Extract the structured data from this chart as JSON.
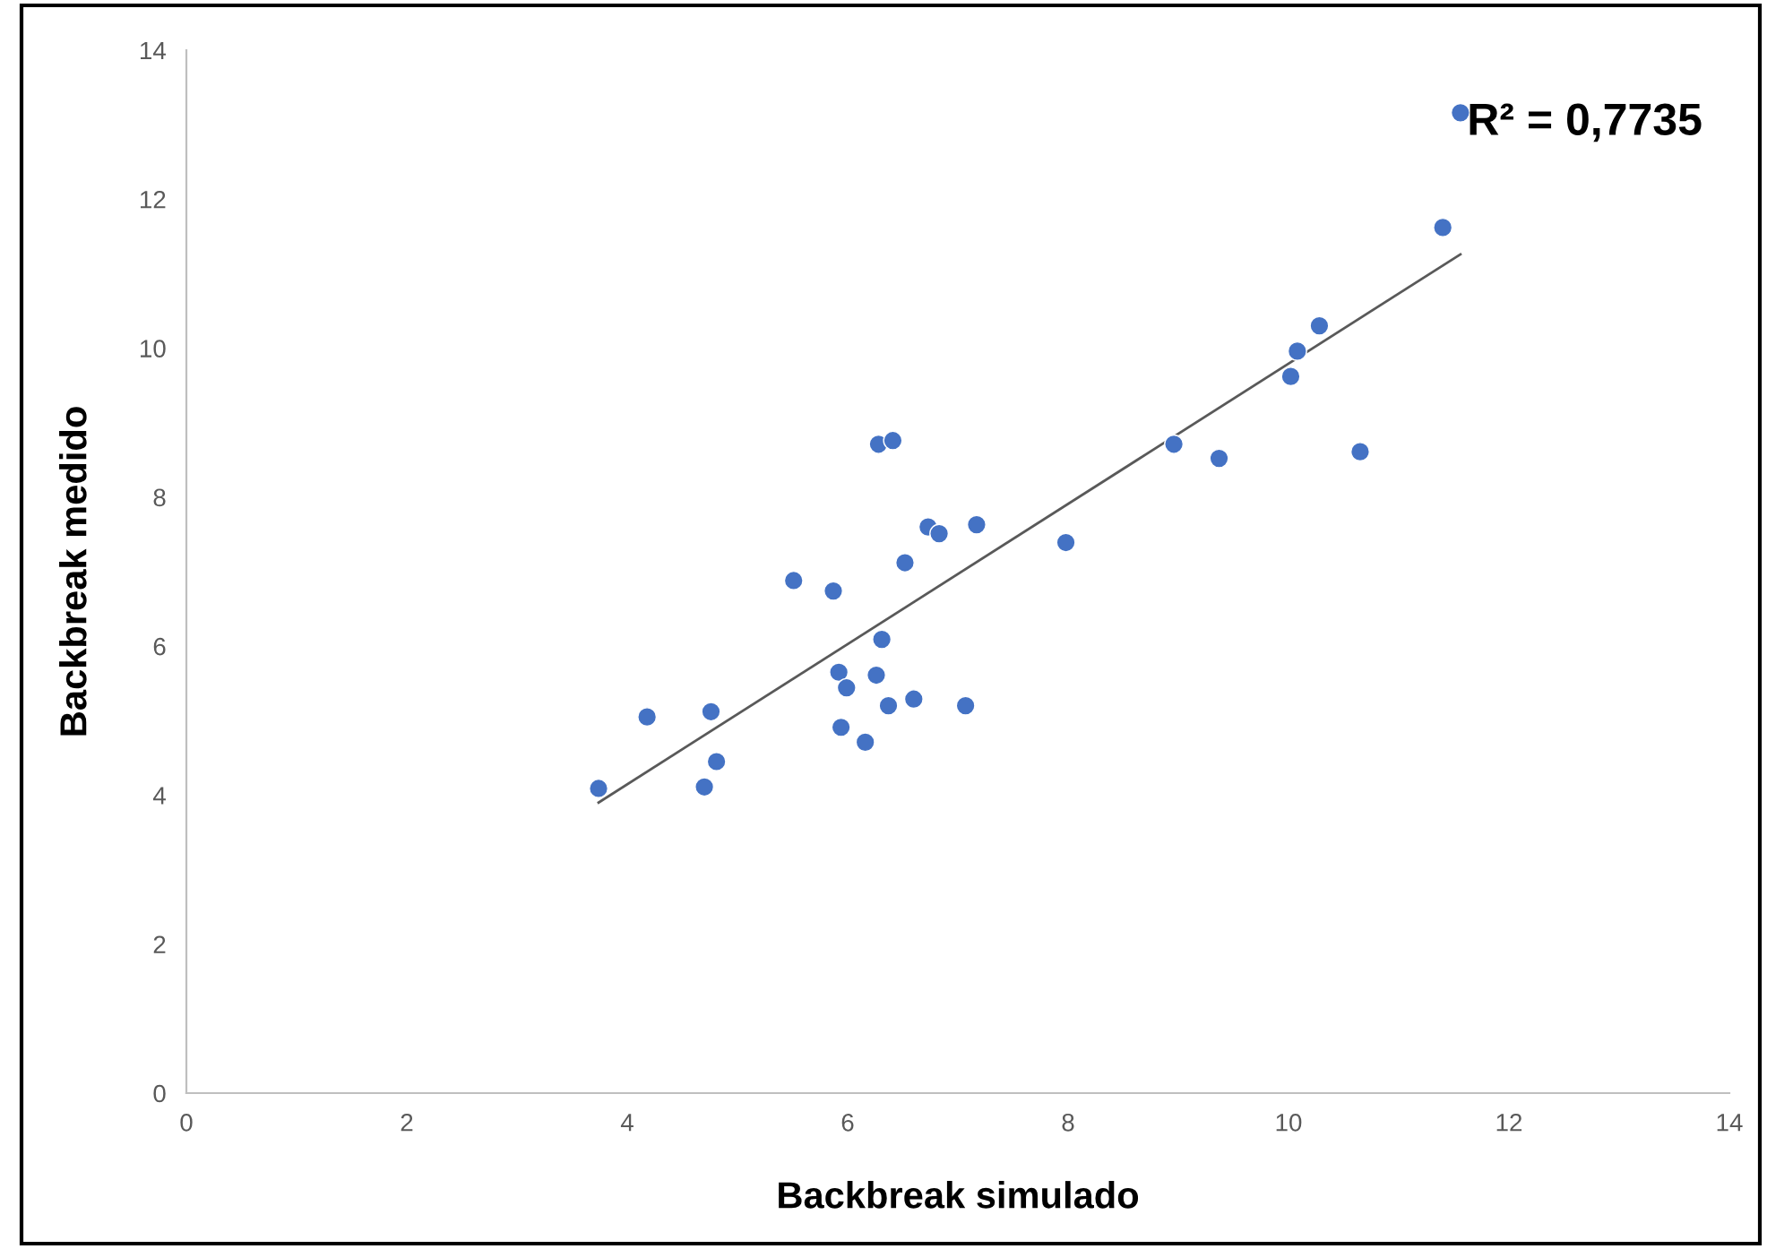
{
  "chart_data": {
    "type": "scatter",
    "xlabel": "Backbreak simulado",
    "ylabel": "Backbreak medido",
    "annotations": [
      "R² = 0,7735"
    ],
    "xlim": [
      0,
      14
    ],
    "ylim": [
      0,
      14
    ],
    "xticks": [
      0,
      2,
      4,
      6,
      8,
      10,
      12,
      14
    ],
    "yticks": [
      0,
      2,
      4,
      6,
      8,
      10,
      12,
      14
    ],
    "grid": false,
    "series": [
      {
        "marker": "circle",
        "color": "#4472c4",
        "x": [
          3.74,
          4.18,
          4.7,
          4.76,
          4.81,
          5.51,
          5.87,
          5.92,
          5.94,
          5.99,
          6.16,
          6.26,
          6.28,
          6.31,
          6.37,
          6.41,
          6.52,
          6.6,
          6.73,
          6.83,
          7.07,
          7.17,
          7.98,
          8.96,
          9.37,
          10.02,
          10.08,
          10.28,
          10.65,
          11.4,
          11.56
        ],
        "values": [
          4.09,
          5.05,
          4.11,
          5.12,
          4.45,
          6.88,
          6.74,
          5.65,
          4.91,
          5.44,
          4.71,
          5.61,
          8.71,
          6.09,
          5.2,
          8.76,
          7.12,
          5.29,
          7.6,
          7.51,
          5.2,
          7.63,
          7.39,
          8.71,
          8.52,
          9.62,
          9.96,
          10.3,
          8.61,
          11.62,
          13.16
        ]
      },
      {
        "type": "line",
        "marker": "none",
        "color": "#595959",
        "line_style": "solid",
        "x": [
          3.74,
          11.56
        ],
        "values": [
          3.9,
          11.26
        ]
      }
    ]
  }
}
